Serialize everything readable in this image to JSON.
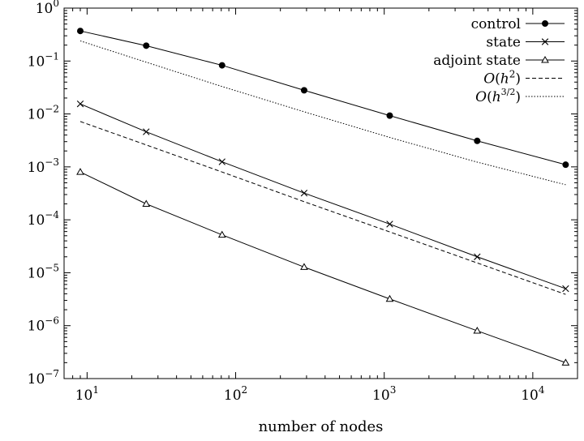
{
  "chart_data": {
    "type": "line",
    "xscale": "log",
    "yscale": "log",
    "xlabel": "number of nodes",
    "ylabel": "",
    "xlim": [
      7,
      20000
    ],
    "ylim": [
      1e-07,
      1
    ],
    "grid": false,
    "legend_position": "top-right",
    "x_ticks": [
      {
        "value": 10,
        "base": "10",
        "exp": "1"
      },
      {
        "value": 100,
        "base": "10",
        "exp": "2"
      },
      {
        "value": 1000,
        "base": "10",
        "exp": "3"
      },
      {
        "value": 10000,
        "base": "10",
        "exp": "4"
      }
    ],
    "y_ticks": [
      {
        "value": 1,
        "base": "10",
        "exp": "0"
      },
      {
        "value": 0.1,
        "base": "10",
        "exp": "−1"
      },
      {
        "value": 0.01,
        "base": "10",
        "exp": "−2"
      },
      {
        "value": 0.001,
        "base": "10",
        "exp": "−3"
      },
      {
        "value": 0.0001,
        "base": "10",
        "exp": "−4"
      },
      {
        "value": 1e-05,
        "base": "10",
        "exp": "−5"
      },
      {
        "value": 1e-06,
        "base": "10",
        "exp": "−6"
      },
      {
        "value": 1e-07,
        "base": "10",
        "exp": "−7"
      }
    ],
    "x": [
      9,
      25,
      81,
      289,
      1089,
      4225,
      16641
    ],
    "series": [
      {
        "name": "control",
        "marker": "filled-circle",
        "dash": "solid",
        "values": [
          0.37,
          0.195,
          0.083,
          0.028,
          0.0093,
          0.0031,
          0.0011
        ]
      },
      {
        "name": "state",
        "marker": "cross",
        "dash": "solid",
        "values": [
          0.0155,
          0.0046,
          0.00125,
          0.00032,
          8.3e-05,
          2e-05,
          5e-06
        ]
      },
      {
        "name": "adjoint state",
        "marker": "triangle",
        "dash": "solid",
        "values": [
          0.0008,
          0.0002,
          5.2e-05,
          1.28e-05,
          3.2e-06,
          8e-07,
          2e-07
        ]
      },
      {
        "name": "O(h2)",
        "marker": "none",
        "dash": "dashed",
        "values": [
          0.0072,
          0.0026,
          0.0008,
          0.00022,
          5.9e-05,
          1.53e-05,
          3.9e-06
        ]
      },
      {
        "name": "O(h3/2)",
        "marker": "none",
        "dash": "dotted",
        "values": [
          0.24,
          0.095,
          0.033,
          0.011,
          0.0036,
          0.00123,
          0.00046
        ]
      }
    ]
  }
}
